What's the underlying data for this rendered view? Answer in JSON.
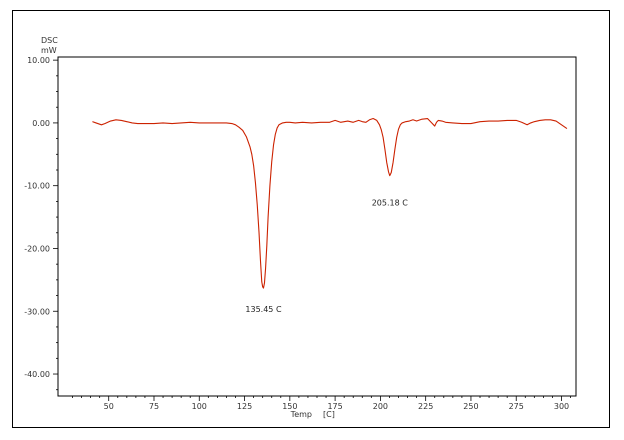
{
  "chart_data": {
    "type": "line",
    "ylabel_top": "DSC",
    "ylabel_unit": "mW",
    "xlabel": "Temp",
    "xunit": "[C]",
    "ylim": [
      -43.5,
      10.5
    ],
    "xlim": [
      22,
      308
    ],
    "y_ticks": [
      "10.00",
      "0.00",
      "-10.00",
      "-20.00",
      "-30.00",
      "-40.00"
    ],
    "y_tick_values": [
      10,
      0,
      -10,
      -20,
      -30,
      -40
    ],
    "x_ticks": [
      "50",
      "75",
      "100",
      "125",
      "150",
      "175",
      "200",
      "225",
      "250",
      "275",
      "300"
    ],
    "x_tick_values": [
      50,
      75,
      100,
      125,
      150,
      175,
      200,
      225,
      250,
      275,
      300
    ],
    "line_color": "#cc2200",
    "series": [
      {
        "x": [
          41,
          43,
          46,
          48,
          51,
          54,
          57,
          60,
          63,
          66,
          70,
          75,
          80,
          85,
          90,
          95,
          100,
          105,
          110,
          115,
          118,
          120,
          122,
          124,
          126,
          128,
          129,
          130,
          131,
          132,
          133,
          133.8,
          134.5,
          135.0,
          135.45,
          136.0,
          136.6,
          137.3,
          138,
          139,
          140,
          141,
          142,
          143,
          144,
          146,
          148,
          150,
          153,
          157,
          162,
          167,
          172,
          175,
          178,
          182,
          185,
          188,
          190,
          192,
          194,
          196,
          198,
          199.5,
          200.5,
          201.5,
          202.5,
          203.5,
          204.5,
          205.18,
          206,
          207,
          208,
          209,
          210,
          211,
          212,
          214,
          216,
          218,
          220,
          223,
          226,
          228,
          230,
          231,
          232,
          234,
          236,
          240,
          245,
          250,
          255,
          260,
          265,
          270,
          275,
          278,
          281,
          283,
          285,
          288,
          291,
          294,
          297,
          299,
          301,
          303
        ],
        "y": [
          0.2,
          0.0,
          -0.3,
          -0.1,
          0.3,
          0.5,
          0.4,
          0.2,
          0.0,
          -0.1,
          -0.1,
          -0.1,
          0.0,
          -0.1,
          0.0,
          0.1,
          0.0,
          0.0,
          0.0,
          0.0,
          -0.1,
          -0.3,
          -0.7,
          -1.2,
          -2.2,
          -3.8,
          -5.0,
          -6.8,
          -9.5,
          -13.0,
          -17.5,
          -22.0,
          -25.3,
          -26.1,
          -26.3,
          -25.5,
          -23.2,
          -19.5,
          -15.0,
          -10.0,
          -6.2,
          -3.5,
          -1.8,
          -0.8,
          -0.3,
          0.0,
          0.1,
          0.1,
          0.0,
          0.1,
          0.0,
          0.1,
          0.1,
          0.4,
          0.1,
          0.3,
          0.1,
          0.4,
          0.2,
          0.1,
          0.5,
          0.7,
          0.4,
          -0.3,
          -1.1,
          -2.3,
          -4.2,
          -6.3,
          -7.8,
          -8.4,
          -7.9,
          -6.3,
          -4.2,
          -2.3,
          -1.0,
          -0.3,
          0.0,
          0.2,
          0.3,
          0.5,
          0.3,
          0.6,
          0.7,
          0.1,
          -0.5,
          0.1,
          0.4,
          0.3,
          0.1,
          0.0,
          -0.1,
          -0.1,
          0.2,
          0.3,
          0.3,
          0.4,
          0.4,
          0.1,
          -0.3,
          0.0,
          0.2,
          0.4,
          0.5,
          0.5,
          0.3,
          -0.1,
          -0.5,
          -0.9
        ]
      }
    ],
    "annotations": [
      {
        "text": "135.45 C",
        "x": 135.45,
        "y": -26.3
      },
      {
        "text": "205.18 C",
        "x": 205.18,
        "y": -8.4
      }
    ]
  }
}
